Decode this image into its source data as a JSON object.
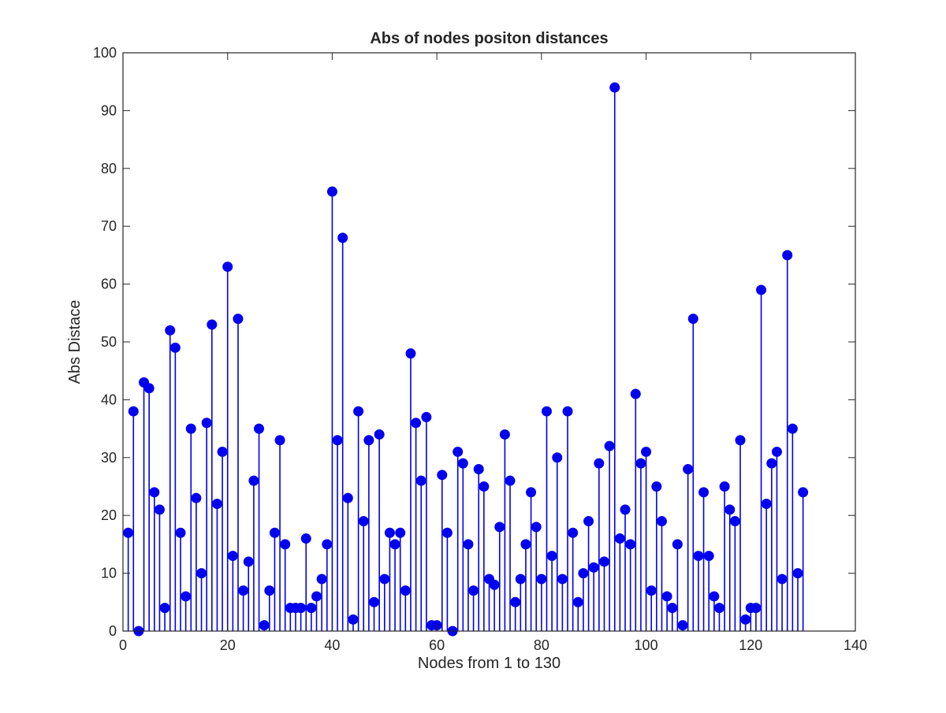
{
  "chart_data": {
    "type": "stem",
    "title": "Abs of nodes positon distances",
    "xlabel": "Nodes from 1 to 130",
    "ylabel": "Abs Distace",
    "xlim": [
      0,
      140
    ],
    "ylim": [
      0,
      100
    ],
    "xticks": [
      0,
      20,
      40,
      60,
      80,
      100,
      120,
      140
    ],
    "yticks": [
      0,
      10,
      20,
      30,
      40,
      50,
      60,
      70,
      80,
      90,
      100
    ],
    "xtick_labels": [
      "0",
      "20",
      "40",
      "60",
      "80",
      "100",
      "120",
      "140"
    ],
    "ytick_labels": [
      "0",
      "10",
      "20",
      "30",
      "40",
      "50",
      "60",
      "70",
      "80",
      "90",
      "100"
    ],
    "grid": false,
    "color": "#0000ee",
    "x": [
      1,
      2,
      3,
      4,
      5,
      6,
      7,
      8,
      9,
      10,
      11,
      12,
      13,
      14,
      15,
      16,
      17,
      18,
      19,
      20,
      21,
      22,
      23,
      24,
      25,
      26,
      27,
      28,
      29,
      30,
      31,
      32,
      33,
      34,
      35,
      36,
      37,
      38,
      39,
      40,
      41,
      42,
      43,
      44,
      45,
      46,
      47,
      48,
      49,
      50,
      51,
      52,
      53,
      54,
      55,
      56,
      57,
      58,
      59,
      60,
      61,
      62,
      63,
      64,
      65,
      66,
      67,
      68,
      69,
      70,
      71,
      72,
      73,
      74,
      75,
      76,
      77,
      78,
      79,
      80,
      81,
      82,
      83,
      84,
      85,
      86,
      87,
      88,
      89,
      90,
      91,
      92,
      93,
      94,
      95,
      96,
      97,
      98,
      99,
      100,
      101,
      102,
      103,
      104,
      105,
      106,
      107,
      108,
      109,
      110,
      111,
      112,
      113,
      114,
      115,
      116,
      117,
      118,
      119,
      120,
      121,
      122,
      123,
      124,
      125,
      126,
      127,
      128,
      129,
      130
    ],
    "y": [
      17,
      38,
      0,
      43,
      42,
      24,
      21,
      4,
      52,
      49,
      17,
      6,
      35,
      23,
      10,
      36,
      53,
      22,
      31,
      63,
      13,
      54,
      7,
      12,
      26,
      35,
      1,
      7,
      17,
      33,
      15,
      4,
      4,
      4,
      16,
      4,
      6,
      9,
      15,
      76,
      33,
      68,
      23,
      2,
      38,
      19,
      33,
      5,
      34,
      9,
      17,
      15,
      17,
      7,
      48,
      36,
      26,
      37,
      1,
      1,
      27,
      17,
      0,
      31,
      29,
      15,
      7,
      28,
      25,
      9,
      8,
      18,
      34,
      26,
      5,
      9,
      15,
      24,
      18,
      9,
      38,
      13,
      30,
      9,
      38,
      17,
      5,
      10,
      19,
      11,
      29,
      12,
      32,
      94,
      16,
      21,
      15,
      41,
      29,
      31,
      7,
      25,
      19,
      6,
      4,
      15,
      1,
      28,
      54,
      13,
      24,
      13,
      6,
      4,
      25,
      21,
      19,
      33,
      2,
      4,
      4,
      59,
      22,
      29,
      31,
      9,
      65,
      35,
      10,
      24
    ]
  }
}
